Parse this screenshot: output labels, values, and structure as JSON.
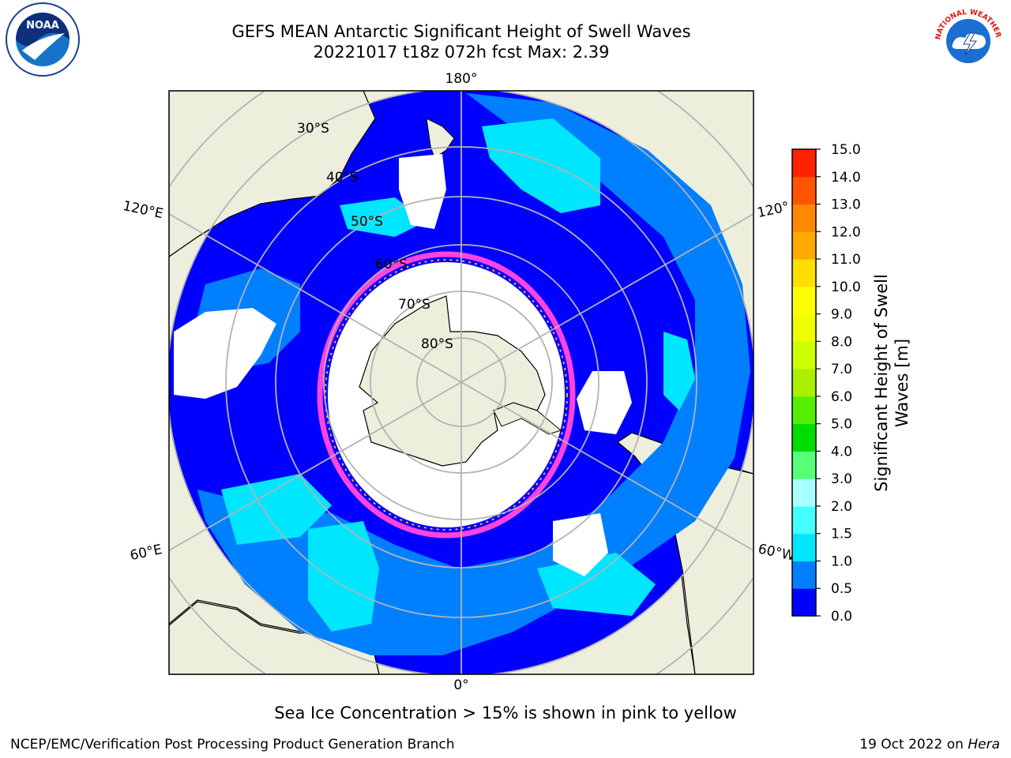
{
  "title": {
    "line1": "GEFS MEAN Antarctic Significant Height of Swell Waves",
    "line2": "20221017 t18z 072h fcst   Max: 2.39"
  },
  "map": {
    "projection": "south-polar-stereographic",
    "longitude_labels": {
      "top": "180°",
      "bottom": "0°",
      "left_upper": "120°E",
      "left_lower": "60°E",
      "right_upper": "120°",
      "right_lower": "60°W"
    },
    "latitude_labels": [
      "30°S",
      "40°S",
      "50°S",
      "60°S",
      "70°S",
      "80°S"
    ],
    "colors": {
      "land": "#eeeedd",
      "ocean_deep": "#0000ff",
      "ocean_mid": "#0080ff",
      "ocean_light": "#00e6ff",
      "ice_edge": "#ff44dd",
      "ice_inner": "#ffaa44",
      "grid": "#b3b3b3"
    }
  },
  "colorbar": {
    "label_line1": "Significant Height of Swell",
    "label_line2": "Waves [m]",
    "ticks": [
      "0.0",
      "0.5",
      "1.0",
      "1.5",
      "2.0",
      "3.0",
      "4.0",
      "5.0",
      "6.0",
      "7.0",
      "8.0",
      "9.0",
      "10.0",
      "11.0",
      "12.0",
      "13.0",
      "14.0",
      "15.0"
    ],
    "colors": [
      "#0000ff",
      "#0080ff",
      "#00e6ff",
      "#44ffff",
      "#aaffff",
      "#55ff77",
      "#00dd00",
      "#55ee00",
      "#aaee00",
      "#ccff00",
      "#eeff00",
      "#ffff00",
      "#ffdd00",
      "#ffaa00",
      "#ff8800",
      "#ff5500",
      "#ff2200"
    ]
  },
  "notes": {
    "ice": "Sea Ice Concentration > 15% is shown in pink to yellow"
  },
  "footer": {
    "left": "NCEP/EMC/Verification Post Processing Product Generation Branch",
    "date": "19 Oct 2022 on ",
    "host": "Hera"
  },
  "logos": {
    "noaa": "NOAA",
    "nws": "NATIONAL WEATHER SERVICE"
  }
}
